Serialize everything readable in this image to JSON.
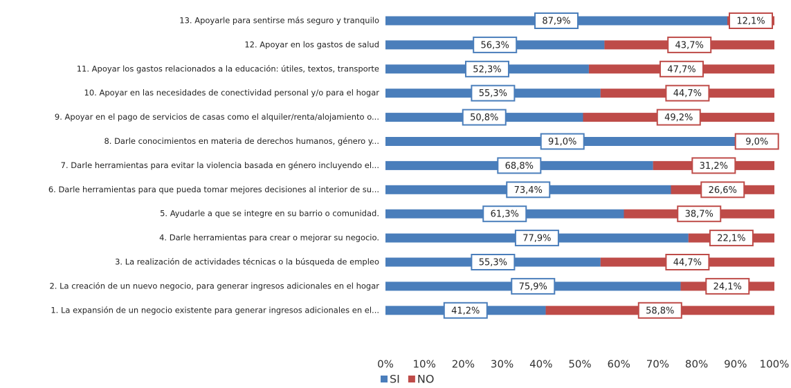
{
  "chart_data": {
    "type": "stacked-barh",
    "categories": [
      "13. Apoyarle para sentirse más seguro y tranquilo",
      "12. Apoyar en los gastos de salud",
      "11. Apoyar los gastos relacionados a la educación: útiles, textos, transporte",
      "10. Apoyar en las necesidades de conectividad personal y/o para el hogar",
      "9. Apoyar en el pago de servicios de casas como el alquiler/renta/alojamiento o...",
      "8. Darle conocimientos en materia de derechos humanos, género y...",
      "7. Darle herramientas para evitar la violencia basada en género incluyendo el...",
      "6. Darle herramientas para que pueda tomar mejores decisiones al interior de su...",
      "5. Ayudarle a que se integre en su barrio o comunidad.",
      "4. Darle herramientas para crear o mejorar su negocio.",
      "3. La realización de actividades técnicas o la búsqueda de empleo",
      "2. La creación de un nuevo negocio, para generar ingresos adicionales en el hogar",
      "1. La expansión de un negocio existente para generar ingresos adicionales en el..."
    ],
    "series": [
      {
        "name": "SI",
        "color": "#4a7ebb",
        "values": [
          87.9,
          56.3,
          52.3,
          55.3,
          50.8,
          91.0,
          68.8,
          73.4,
          61.3,
          77.9,
          55.3,
          75.9,
          41.2
        ],
        "value_labels": [
          "87,9%",
          "56,3%",
          "52,3%",
          "55,3%",
          "50,8%",
          "91,0%",
          "68,8%",
          "73,4%",
          "61,3%",
          "77,9%",
          "55,3%",
          "75,9%",
          "41,2%"
        ]
      },
      {
        "name": "NO",
        "color": "#be4b48",
        "values": [
          12.1,
          43.7,
          47.7,
          44.7,
          49.2,
          9.0,
          31.2,
          26.6,
          38.7,
          22.1,
          44.7,
          24.1,
          58.8
        ],
        "value_labels": [
          "12,1%",
          "43,7%",
          "47,7%",
          "44,7%",
          "49,2%",
          "9,0%",
          "31,2%",
          "26,6%",
          "38,7%",
          "22,1%",
          "44,7%",
          "24,1%",
          "58,8%"
        ]
      }
    ],
    "xlim": [
      0,
      100
    ],
    "xticks": [
      {
        "value": 0,
        "label": "0%"
      },
      {
        "value": 10,
        "label": "10%"
      },
      {
        "value": 20,
        "label": "20%"
      },
      {
        "value": 30,
        "label": "30%"
      },
      {
        "value": 40,
        "label": "40%"
      },
      {
        "value": 50,
        "label": "50%"
      },
      {
        "value": 60,
        "label": "60%"
      },
      {
        "value": 70,
        "label": "70%"
      },
      {
        "value": 80,
        "label": "80%"
      },
      {
        "value": 90,
        "label": "90%"
      },
      {
        "value": 100,
        "label": "100%"
      }
    ],
    "legend": "bottom"
  }
}
